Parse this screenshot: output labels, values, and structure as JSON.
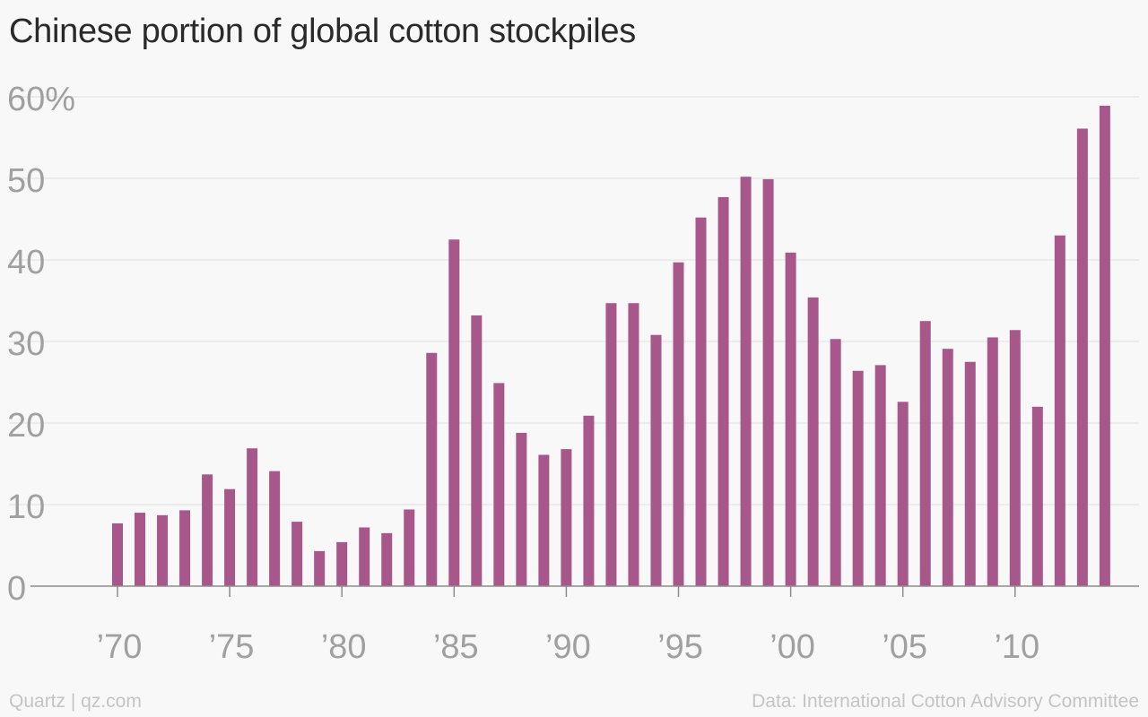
{
  "title": "Chinese portion of global cotton stockpiles",
  "credit": "Quartz | qz.com",
  "source": "Data: International Cotton Advisory Committee",
  "colors": {
    "bar": "#a8578a",
    "grid": "#e8e8e8",
    "axis": "#8c8c8c",
    "tick_text": "#a0a0a0",
    "background": "#f8f8f8"
  },
  "chart_data": {
    "type": "bar",
    "title": "Chinese portion of global cotton stockpiles",
    "xlabel": "",
    "ylabel": "",
    "ylim": [
      0,
      60
    ],
    "y_ticks": [
      0,
      10,
      20,
      30,
      40,
      50,
      60
    ],
    "y_tick_labels": [
      "0",
      "10",
      "20",
      "30",
      "40",
      "50",
      "60%"
    ],
    "x_ticks": [
      1970,
      1975,
      1980,
      1985,
      1990,
      1995,
      2000,
      2005,
      2010
    ],
    "x_tick_labels": [
      "’70",
      "’75",
      "’80",
      "’85",
      "’90",
      "’95",
      "’00",
      "’05",
      "’10"
    ],
    "grid": true,
    "x": [
      1970,
      1971,
      1972,
      1973,
      1974,
      1975,
      1976,
      1977,
      1978,
      1979,
      1980,
      1981,
      1982,
      1983,
      1984,
      1985,
      1986,
      1987,
      1988,
      1989,
      1990,
      1991,
      1992,
      1993,
      1994,
      1995,
      1996,
      1997,
      1998,
      1999,
      2000,
      2001,
      2002,
      2003,
      2004,
      2005,
      2006,
      2007,
      2008,
      2009,
      2010,
      2011,
      2012,
      2013,
      2014
    ],
    "values": [
      7.7,
      9.0,
      8.7,
      9.3,
      13.7,
      11.9,
      16.9,
      14.1,
      7.9,
      4.3,
      5.4,
      7.2,
      6.5,
      9.4,
      28.6,
      42.5,
      33.2,
      24.9,
      18.8,
      16.1,
      16.8,
      20.9,
      34.7,
      34.7,
      30.8,
      39.7,
      45.2,
      47.7,
      50.2,
      49.9,
      40.9,
      35.4,
      30.3,
      26.4,
      27.1,
      22.6,
      32.5,
      29.1,
      27.5,
      30.5,
      31.4,
      22.0,
      43.0,
      56.1,
      58.9
    ]
  }
}
